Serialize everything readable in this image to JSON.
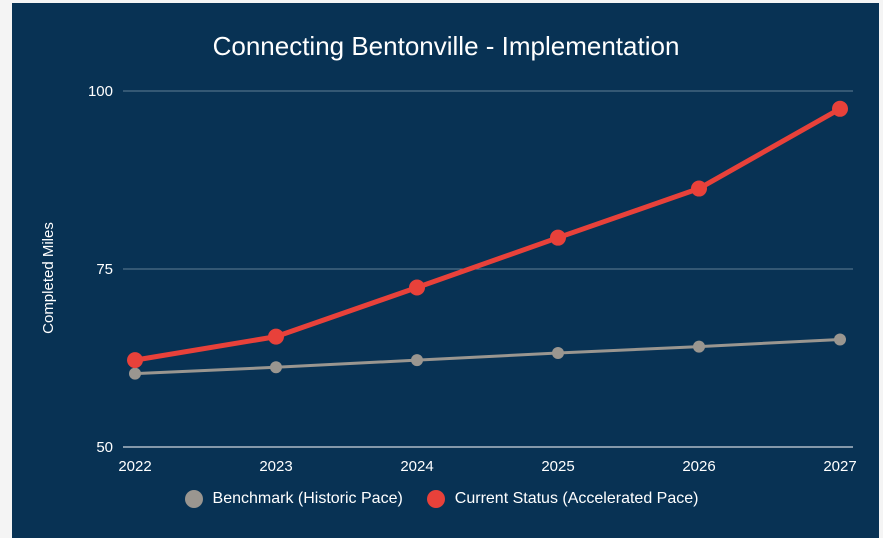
{
  "colors": {
    "background": "#083254",
    "grid": "#5f7f94",
    "text": "#ffffff",
    "benchmark": "#9a9690",
    "current": "#e8413a"
  },
  "chart_data": {
    "type": "line",
    "title": "Connecting Bentonville - Implementation",
    "xlabel": "",
    "ylabel": "Completed Miles",
    "x": [
      "2022",
      "2023",
      "2024",
      "2025",
      "2026",
      "2027"
    ],
    "ylim": [
      50,
      100
    ],
    "yticks": [
      "50",
      "75",
      "100"
    ],
    "grid": "horizontal",
    "legend_position": "bottom",
    "series": [
      {
        "name": "Benchmark (Historic Pace)",
        "color": "#9a9690",
        "values": [
          60.3,
          61.2,
          62.2,
          63.2,
          64.1,
          65.1
        ]
      },
      {
        "name": "Current Status (Accelerated Pace)",
        "color": "#e8413a",
        "values": [
          62.2,
          65.5,
          72.4,
          79.4,
          86.3,
          97.5
        ]
      }
    ]
  }
}
